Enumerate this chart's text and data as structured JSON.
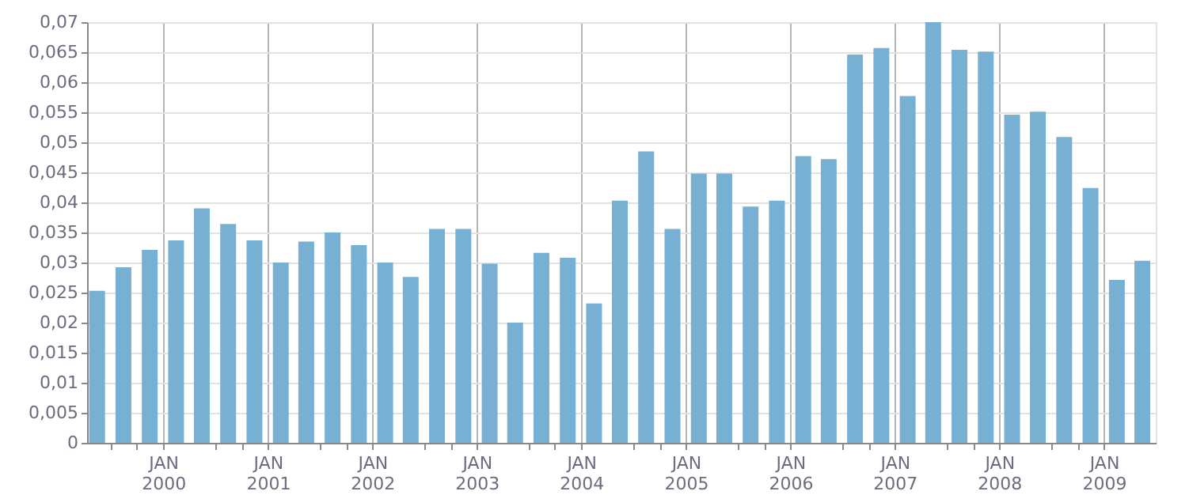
{
  "chart_data": {
    "type": "bar",
    "color": "#77b0d3",
    "grid": true,
    "x": [
      "1999-05-15",
      "1999-08-15",
      "1999-11-15",
      "2000-02-15",
      "2000-05-15",
      "2000-08-15",
      "2000-11-15",
      "2001-02-15",
      "2001-05-15",
      "2001-08-15",
      "2001-11-15",
      "2002-02-15",
      "2002-05-15",
      "2002-08-15",
      "2002-11-15",
      "2003-02-15",
      "2003-05-15",
      "2003-08-15",
      "2003-11-15",
      "2004-02-15",
      "2004-05-15",
      "2004-08-15",
      "2004-11-15",
      "2005-02-15",
      "2005-05-15",
      "2005-08-15",
      "2005-11-15",
      "2006-02-15",
      "2006-05-15",
      "2006-08-15",
      "2006-11-15",
      "2007-02-15",
      "2007-05-15",
      "2007-08-15",
      "2007-11-15",
      "2008-02-15",
      "2008-05-15",
      "2008-08-15",
      "2008-11-15",
      "2009-02-15",
      "2009-05-15"
    ],
    "values": [
      0.0253,
      0.0292,
      0.0321,
      0.0337,
      0.039,
      0.0364,
      0.0337,
      0.03,
      0.0335,
      0.035,
      0.0329,
      0.03,
      0.0276,
      0.0356,
      0.0356,
      0.0298,
      0.02,
      0.0316,
      0.0308,
      0.0232,
      0.0403,
      0.0485,
      0.0356,
      0.0448,
      0.0448,
      0.0393,
      0.0403,
      0.0477,
      0.0472,
      0.0646,
      0.0657,
      0.0577,
      0.07,
      0.0654,
      0.0651,
      0.0546,
      0.0551,
      0.0509,
      0.0424,
      0.0271,
      0.0303
    ],
    "xlim": [
      "1999-04-10",
      "2009-07-01"
    ],
    "xticks": [
      {
        "value": "1999-07-01",
        "label": null
      },
      {
        "value": "1999-10-01",
        "label": null
      },
      {
        "value": "2000-01-01",
        "label": "JAN 2000"
      },
      {
        "value": "2000-07-01",
        "label": null
      },
      {
        "value": "2000-10-01",
        "label": null
      },
      {
        "value": "2001-01-01",
        "label": "JAN 2001"
      },
      {
        "value": "2001-07-01",
        "label": null
      },
      {
        "value": "2001-10-01",
        "label": null
      },
      {
        "value": "2002-01-01",
        "label": "JAN 2002"
      },
      {
        "value": "2002-07-01",
        "label": null
      },
      {
        "value": "2002-10-01",
        "label": null
      },
      {
        "value": "2003-01-01",
        "label": "JAN 2003"
      },
      {
        "value": "2003-07-01",
        "label": null
      },
      {
        "value": "2003-10-01",
        "label": null
      },
      {
        "value": "2004-01-01",
        "label": "JAN 2004"
      },
      {
        "value": "2004-07-01",
        "label": null
      },
      {
        "value": "2004-10-01",
        "label": null
      },
      {
        "value": "2005-01-01",
        "label": "JAN 2005"
      },
      {
        "value": "2005-07-01",
        "label": null
      },
      {
        "value": "2005-10-01",
        "label": null
      },
      {
        "value": "2006-01-01",
        "label": "JAN 2006"
      },
      {
        "value": "2006-07-01",
        "label": null
      },
      {
        "value": "2006-10-01",
        "label": null
      },
      {
        "value": "2007-01-01",
        "label": "JAN 2007"
      },
      {
        "value": "2007-07-01",
        "label": null
      },
      {
        "value": "2007-10-01",
        "label": null
      },
      {
        "value": "2008-01-01",
        "label": "JAN 2008"
      },
      {
        "value": "2008-07-01",
        "label": null
      },
      {
        "value": "2008-10-01",
        "label": null
      },
      {
        "value": "2009-01-01",
        "label": "JAN 2009"
      }
    ],
    "ylim": [
      0,
      0.07
    ],
    "yticks": [
      0,
      {
        "value": 0.005,
        "label": "0,005"
      },
      {
        "value": 0.01,
        "label": "0,01"
      },
      {
        "value": 0.015,
        "label": "0,015"
      },
      {
        "value": 0.02,
        "label": "0,02"
      },
      {
        "value": 0.025,
        "label": "0,025"
      },
      {
        "value": 0.03,
        "label": "0,03"
      },
      {
        "value": 0.035,
        "label": "0,035"
      },
      {
        "value": 0.04,
        "label": "0,04"
      },
      {
        "value": 0.045,
        "label": "0,045"
      },
      {
        "value": 0.05,
        "label": "0,05"
      },
      {
        "value": 0.055,
        "label": "0,055"
      },
      {
        "value": 0.06,
        "label": "0,06"
      },
      {
        "value": 0.065,
        "label": "0,065"
      },
      {
        "value": 0.07,
        "label": "0,07"
      }
    ]
  }
}
